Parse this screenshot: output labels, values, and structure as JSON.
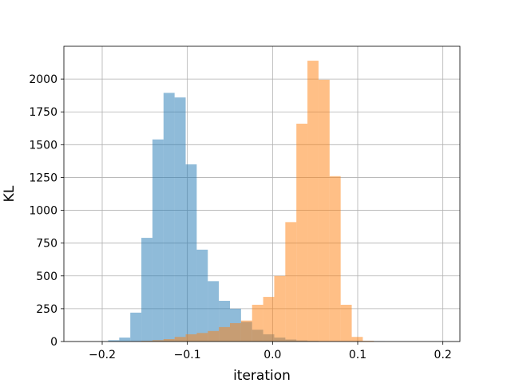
{
  "chart_data": {
    "type": "bar",
    "subtype": "overlaid-histogram",
    "title": "",
    "xlabel": "iteration",
    "ylabel": "KL",
    "xlim": [
      -0.245,
      0.22
    ],
    "ylim": [
      0,
      2250
    ],
    "xticks": [
      -0.2,
      -0.1,
      0.0,
      0.1,
      0.2
    ],
    "xtick_labels": [
      "−0.2",
      "−0.1",
      "0.0",
      "0.1",
      "0.2"
    ],
    "yticks": [
      0,
      250,
      500,
      750,
      1000,
      1250,
      1500,
      1750,
      2000
    ],
    "ytick_labels": [
      "0",
      "250",
      "500",
      "750",
      "1000",
      "1250",
      "1500",
      "1750",
      "2000"
    ],
    "grid": true,
    "series": [
      {
        "color": "#1f77b4",
        "opacity": 0.5,
        "bin_edges": [
          -0.193,
          -0.18,
          -0.167,
          -0.154,
          -0.141,
          -0.128,
          -0.115,
          -0.102,
          -0.089,
          -0.076,
          -0.063,
          -0.05,
          -0.037,
          -0.024,
          -0.011,
          0.002,
          0.015,
          0.028,
          0.041,
          0.054,
          0.067,
          0.08,
          0.093,
          0.106,
          0.119,
          0.132,
          0.145
        ],
        "values": [
          10,
          30,
          220,
          790,
          1540,
          1895,
          1860,
          1350,
          700,
          460,
          310,
          250,
          150,
          90,
          55,
          30,
          15,
          8,
          5,
          3,
          2,
          1,
          1,
          0,
          1,
          0
        ]
      },
      {
        "color": "#ff7f0e",
        "opacity": 0.5,
        "bin_edges": [
          -0.167,
          -0.154,
          -0.141,
          -0.128,
          -0.115,
          -0.102,
          -0.089,
          -0.076,
          -0.063,
          -0.05,
          -0.037,
          -0.024,
          -0.011,
          0.002,
          0.015,
          0.028,
          0.041,
          0.054,
          0.067,
          0.08,
          0.093,
          0.106,
          0.119
        ],
        "values": [
          2,
          5,
          10,
          18,
          35,
          55,
          65,
          80,
          110,
          140,
          160,
          280,
          340,
          500,
          910,
          1660,
          2140,
          1995,
          1260,
          280,
          35,
          5
        ]
      }
    ]
  }
}
